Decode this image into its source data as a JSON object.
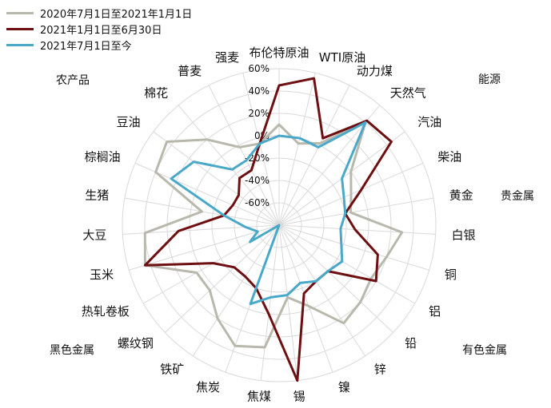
{
  "chart_data": {
    "type": "radar",
    "axis_min": -80,
    "axis_max": 60,
    "tick_values": [
      -60,
      -40,
      -20,
      0,
      20,
      40,
      60
    ],
    "tick_labels": [
      "-60%",
      "-40%",
      "-20%",
      "0%",
      "20%",
      "40%",
      "60%"
    ],
    "categories": [
      "布伦特原油",
      "WTI原油",
      "动力煤",
      "天然气",
      "汽油",
      "柴油",
      "黄金",
      "白银",
      "铜",
      "铝",
      "铅",
      "锌",
      "镍",
      "锡",
      "焦煤",
      "焦炭",
      "铁矿",
      "螺纹钢",
      "热轧卷板",
      "玉米",
      "大豆",
      "生猪",
      "棕榈油",
      "豆油",
      "棉花",
      "普麦",
      "强麦"
    ],
    "groups": [
      "能源",
      "贵金属",
      "有色金属",
      "黑色金属",
      "农产品"
    ],
    "series": [
      {
        "name": "2020年7月1日至2021年1月1日",
        "color": "#b9b8ad",
        "values": [
          10,
          -5,
          2,
          40,
          0,
          -10,
          -15,
          30,
          20,
          15,
          20,
          25,
          -3,
          -15,
          30,
          35,
          20,
          5,
          5,
          45,
          40,
          -10,
          40,
          45,
          20,
          -2,
          -5
        ]
      },
      {
        "name": "2021年1月1日至6月30日",
        "color": "#6e0f12",
        "values": [
          45,
          55,
          7,
          42,
          45,
          0,
          -20,
          -12,
          12,
          20,
          -20,
          -20,
          -15,
          60,
          0,
          -20,
          -25,
          -25,
          -12,
          45,
          10,
          -30,
          -35,
          -35,
          -25,
          -25,
          -5
        ]
      },
      {
        "name": "2021年7月1日至今",
        "color": "#4aa8c8",
        "values": [
          0,
          0,
          -2,
          40,
          -10,
          -17,
          -20,
          -25,
          -22,
          -15,
          -20,
          -20,
          -25,
          -17,
          -15,
          -5,
          -80,
          -80,
          -50,
          -60,
          -50,
          -30,
          25,
          15,
          -15,
          -15,
          -5
        ]
      }
    ]
  }
}
